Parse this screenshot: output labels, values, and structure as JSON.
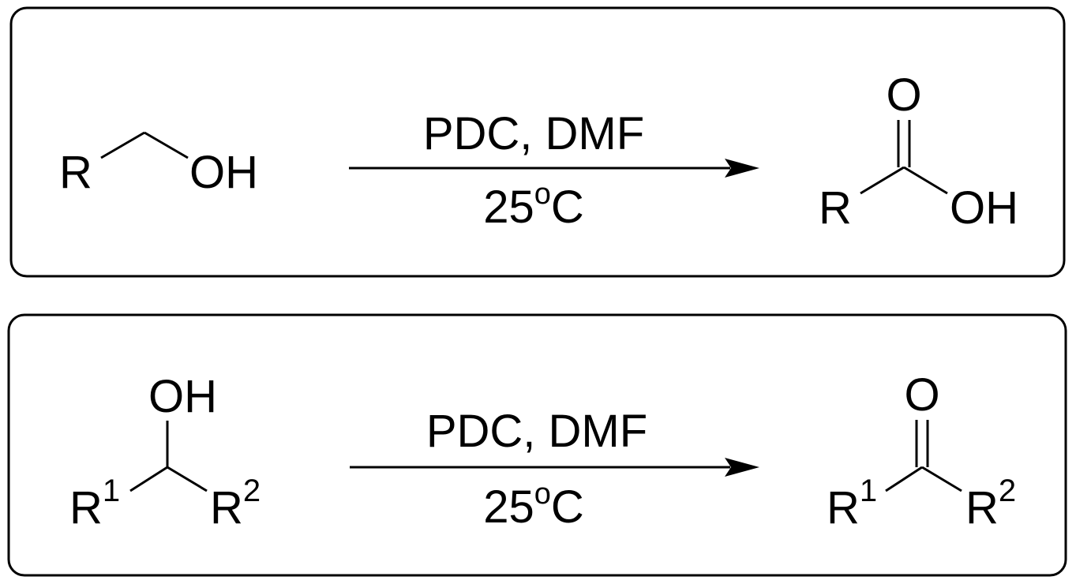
{
  "reactions": [
    {
      "reactant": {
        "r_label": "R",
        "oh_label": "OH"
      },
      "conditions": {
        "reagents": "PDC, DMF",
        "temp_value": "25",
        "temp_degree": "o",
        "temp_unit": "C"
      },
      "product": {
        "o_label": "O",
        "r_label": "R",
        "oh_label": "OH"
      }
    },
    {
      "reactant": {
        "oh_label": "OH",
        "r1_label": "R",
        "r1_sup": "1",
        "r2_label": "R",
        "r2_sup": "2"
      },
      "conditions": {
        "reagents": "PDC, DMF",
        "temp_value": "25",
        "temp_degree": "o",
        "temp_unit": "C"
      },
      "product": {
        "o_label": "O",
        "r1_label": "R",
        "r1_sup": "1",
        "r2_label": "R",
        "r2_sup": "2"
      }
    }
  ],
  "colors": {
    "ink": "#000000",
    "background": "#ffffff"
  }
}
